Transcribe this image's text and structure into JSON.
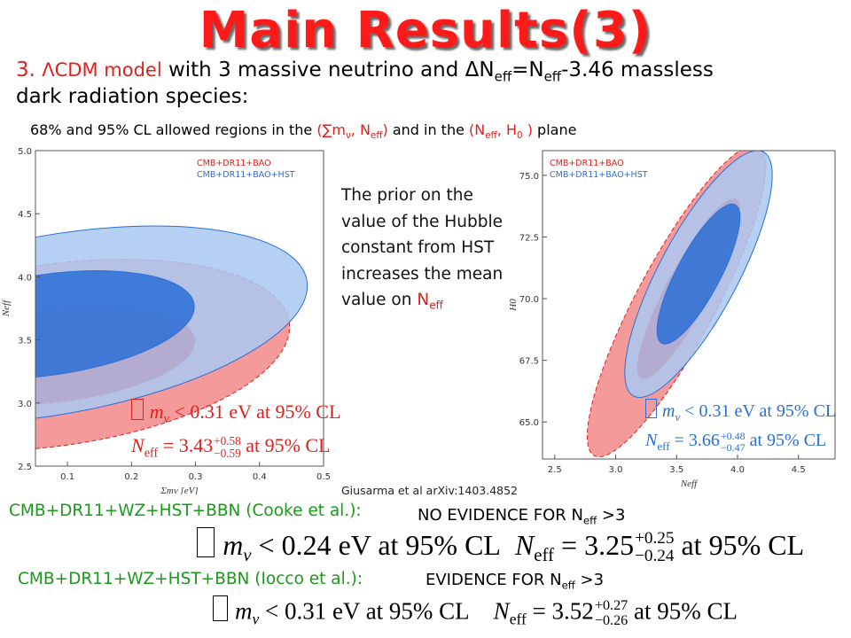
{
  "title": "Main Results(3)",
  "subtitle": {
    "number": "3.",
    "model": "ΛCDM model",
    "rest_a": " with 3 massive neutrino and ",
    "delta": "ΔN",
    "eff1": "eff",
    "eq": "=N",
    "eff2": "eff",
    "rest_b": "-3.46 massless",
    "line2": "dark radiation species:"
  },
  "caption": {
    "text_a": "68% and 95% CL allowed regions in the ",
    "pair1": "(∑m",
    "pair1_sub": "ν",
    "pair1_b": ", N",
    "pair1_sub2": "eff",
    "pair1_c": ")",
    "text_b": " and in the ",
    "pair2": "(N",
    "pair2_sub": "eff",
    "pair2_b": ", H",
    "pair2_sub2": "0",
    "pair2_c": " )",
    "text_c": " plane"
  },
  "prior_note": {
    "text": "The prior on the value of the Hubble constant from HST increases the mean value on ",
    "neff": "N",
    "neff_sub": "eff"
  },
  "citation": "Giusarma et al arXiv:1403.4852",
  "cooke": {
    "label": "CMB+DR11+WZ+HST+BBN (Cooke et al.):",
    "verdict": "NO EVIDENCE FOR N",
    "verdict_sub": "eff",
    "verdict_tail": " >3",
    "mnu_text": " < 0.24 eV at 95% CL",
    "neff_value": " = 3.25",
    "neff_plus": "+0.25",
    "neff_minus": "−0.24",
    "neff_tail": " at 95% CL"
  },
  "iocco": {
    "label": "CMB+DR11+WZ+HST+BBN (Iocco et al.):",
    "verdict": "EVIDENCE FOR N",
    "verdict_sub": "eff",
    "verdict_tail": " >3",
    "mnu_text": " < 0.31 eV at 95% CL",
    "neff_value": " = 3.52",
    "neff_plus": "+0.27",
    "neff_minus": "−0.26",
    "neff_tail": " at 95% CL"
  },
  "formula_symbols": {
    "m": "m",
    "nu": "ν",
    "N": "N",
    "eff": "eff"
  },
  "left_plot_results": {
    "mnu_text": " < 0.31 eV at 95% CL",
    "neff_value": " = 3.43",
    "neff_plus": "+0.58",
    "neff_minus": "−0.59",
    "neff_tail": " at 95% CL"
  },
  "right_plot_results": {
    "mnu_text": " < 0.31 eV at 95% CL",
    "neff_value": " = 3.66",
    "neff_plus": "+0.48",
    "neff_minus": "−0.47",
    "neff_tail": " at 95% CL"
  },
  "colors": {
    "title": "#ff1a1a",
    "red_series_fill_95": "#f49a9a",
    "red_series_fill_68": "#ee1111",
    "blue_series_fill_95": "#a9c8f2",
    "blue_series_fill_68": "#2a6fd6",
    "label_green": "#1a9a1a"
  },
  "chart_data": [
    {
      "type": "contour",
      "xlabel": "Σm_ν [eV]",
      "ylabel": "N_eff",
      "xlim": [
        0.05,
        0.5
      ],
      "ylim": [
        2.5,
        5.0
      ],
      "xticks": [
        "0.1",
        "0.2",
        "0.3",
        "0.4",
        "0.5"
      ],
      "yticks": [
        "2.5",
        "3.0",
        "3.5",
        "4.0",
        "4.5",
        "5.0"
      ],
      "legend_position": "top-right",
      "series": [
        {
          "name": "CMB+DR11+BAO",
          "color": "#e0201c",
          "regions": [
            {
              "level": "95%",
              "cx": 0.08,
              "cy": 3.38,
              "rx": 0.37,
              "ry": 0.72,
              "rot": -8
            },
            {
              "level": "68%",
              "cx": 0.07,
              "cy": 3.38,
              "rx": 0.23,
              "ry": 0.38,
              "rot": -6
            }
          ]
        },
        {
          "name": "CMB+DR11+BAO+HST",
          "color": "#2a6fd6",
          "regions": [
            {
              "level": "95%",
              "cx": 0.08,
              "cy": 3.62,
              "rx": 0.4,
              "ry": 0.71,
              "rot": -10
            },
            {
              "level": "68%",
              "cx": 0.07,
              "cy": 3.62,
              "rx": 0.23,
              "ry": 0.4,
              "rot": -8
            }
          ]
        }
      ]
    },
    {
      "type": "contour",
      "xlabel": "N_eff",
      "ylabel": "H_0",
      "xlim": [
        2.4,
        4.8
      ],
      "ylim": [
        63.5,
        76.0
      ],
      "xticks": [
        "2.5",
        "3.0",
        "3.5",
        "4.0",
        "4.5"
      ],
      "yticks": [
        "65.0",
        "67.5",
        "70.0",
        "72.5",
        "75.0"
      ],
      "legend_position": "top-left",
      "series": [
        {
          "name": "CMB+DR11+BAO",
          "color": "#e0201c",
          "regions": [
            {
              "level": "95%",
              "cx": 3.5,
              "cy": 69.9,
              "rx": 3.8,
              "ry": 0.62,
              "rot": -62
            },
            {
              "level": "68%",
              "cx": 3.6,
              "cy": 70.4,
              "rx": 2.2,
              "ry": 0.34,
              "rot": -62
            }
          ]
        },
        {
          "name": "CMB+DR11+BAO+HST",
          "color": "#2a6fd6",
          "regions": [
            {
              "level": "95%",
              "cx": 3.68,
              "cy": 71.0,
              "rx": 3.0,
              "ry": 0.62,
              "rot": -62
            },
            {
              "level": "68%",
              "cx": 3.68,
              "cy": 71.0,
              "rx": 1.7,
              "ry": 0.34,
              "rot": -62
            }
          ]
        }
      ]
    }
  ]
}
